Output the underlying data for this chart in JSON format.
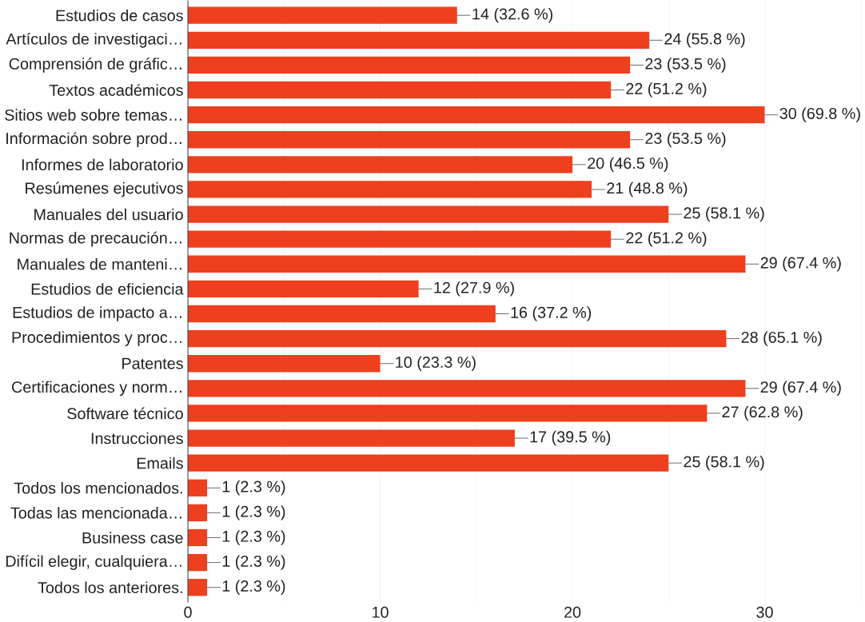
{
  "chart_data": {
    "type": "bar",
    "orientation": "horizontal",
    "color": "#ee3f1e",
    "grid": "x",
    "categories": [
      "Estudios de casos",
      "Artículos de investigaci…",
      "Comprensión de gráfic…",
      "Textos académicos",
      "Sitios web sobre temas…",
      "Información sobre prod…",
      "Informes de laboratorio",
      "Resúmenes ejecutivos",
      "Manuales del usuario",
      "Normas de precaución…",
      "Manuales de manteni…",
      "Estudios de eficiencia",
      "Estudios de impacto a…",
      "Procedimientos y proc…",
      "Patentes",
      "Certificaciones y norm…",
      "Software técnico",
      "Instrucciones",
      "Emails",
      "Todos los mencionados.",
      "Todas las mencionada…",
      "Business case",
      "Difícil elegir, cualquiera…",
      "Todos los anteriores."
    ],
    "values": [
      14,
      24,
      23,
      22,
      30,
      23,
      20,
      21,
      25,
      22,
      29,
      12,
      16,
      28,
      10,
      29,
      27,
      17,
      25,
      1,
      1,
      1,
      1,
      1
    ],
    "value_labels": [
      "14 (32.6 %)",
      "24 (55.8 %)",
      "23 (53.5 %)",
      "22 (51.2 %)",
      "30 (69.8 %)",
      "23 (53.5 %)",
      "20 (46.5 %)",
      "21 (48.8 %)",
      "25 (58.1 %)",
      "22 (51.2 %)",
      "29 (67.4 %)",
      "12 (27.9 %)",
      "16 (37.2 %)",
      "28 (65.1 %)",
      "10 (23.3 %)",
      "29 (67.4 %)",
      "27 (62.8 %)",
      "17 (39.5 %)",
      "25 (58.1 %)",
      "1 (2.3 %)",
      "1 (2.3 %)",
      "1 (2.3 %)",
      "1 (2.3 %)",
      "1 (2.3 %)"
    ],
    "xlim": [
      0,
      35
    ],
    "xticks": [
      0,
      {
        "value": 5,
        "label": null
      },
      10,
      {
        "value": 15,
        "label": null
      },
      20,
      {
        "value": 25,
        "label": null
      },
      30,
      {
        "value": 35,
        "label": null
      }
    ]
  }
}
